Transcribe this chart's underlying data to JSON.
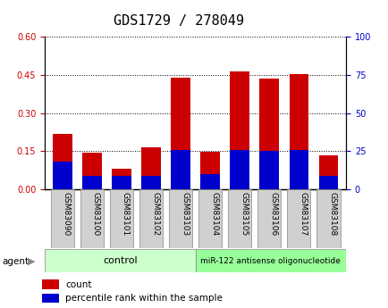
{
  "title": "GDS1729 / 278049",
  "samples": [
    "GSM83090",
    "GSM83100",
    "GSM83101",
    "GSM83102",
    "GSM83103",
    "GSM83104",
    "GSM83105",
    "GSM83106",
    "GSM83107",
    "GSM83108"
  ],
  "count_values": [
    0.22,
    0.145,
    0.08,
    0.165,
    0.44,
    0.148,
    0.465,
    0.435,
    0.455,
    0.135
  ],
  "percentile_values": [
    18,
    9,
    9,
    9,
    26,
    10,
    26,
    25,
    26,
    9
  ],
  "ylim_left": [
    0,
    0.6
  ],
  "ylim_right": [
    0,
    100
  ],
  "yticks_left": [
    0,
    0.15,
    0.3,
    0.45,
    0.6
  ],
  "yticks_right": [
    0,
    25,
    50,
    75,
    100
  ],
  "bar_color_count": "#cc0000",
  "bar_color_percentile": "#0000cc",
  "bar_width": 0.65,
  "control_label": "control",
  "treatment_label": "miR-122 antisense oligonucleotide",
  "control_color": "#ccffcc",
  "treatment_color": "#99ff99",
  "agent_label": "agent",
  "legend_count": "count",
  "legend_percentile": "percentile rank within the sample",
  "title_fontsize": 11,
  "tick_fontsize": 7,
  "label_fontsize": 8,
  "left_tick_color": "#cc0000",
  "right_tick_color": "#0000cc"
}
